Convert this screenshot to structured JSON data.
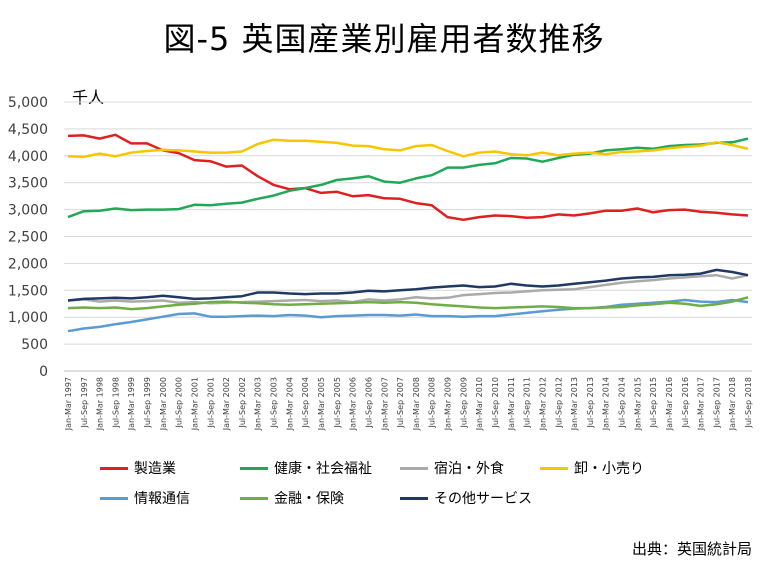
{
  "title": "図-5 英国産業別雇用者数推移",
  "unit_label": "千人",
  "source": "出典：英国統計局",
  "chart_data": {
    "type": "line",
    "title": "図-5 英国産業別雇用者数推移",
    "ylabel": "千人",
    "ylim": [
      0,
      5000
    ],
    "yticks": [
      0,
      500,
      1000,
      1500,
      2000,
      2500,
      3000,
      3500,
      4000,
      4500,
      5000
    ],
    "ytick_labels": [
      "0",
      "500",
      "1,000",
      "1,500",
      "2,000",
      "2,500",
      "3,000",
      "3,500",
      "4,000",
      "4,500",
      "5,000"
    ],
    "x_labels": [
      "Jan-Mar 1997",
      "Jul-Sep 1997",
      "Jan-Mar 1998",
      "Jul-Sep 1998",
      "Jan-Mar 1999",
      "Jul-Sep 1999",
      "Jan-Mar 2000",
      "Jul-Sep 2000",
      "Jan-Mar 2001",
      "Jul-Sep 2001",
      "Jan-Mar 2002",
      "Jul-Sep 2002",
      "Jan-Mar 2003",
      "Jul-Sep 2003",
      "Jan-Mar 2004",
      "Jul-Sep 2004",
      "Jan-Mar 2005",
      "Jul-Sep 2005",
      "Jan-Mar 2006",
      "Jul-Sep 2006",
      "Jan-Mar 2007",
      "Jul-Sep 2007",
      "Jan-Mar 2008",
      "Jul-Sep 2008",
      "Jan-Mar 2009",
      "Jul-Sep 2009",
      "Jan-Mar 2010",
      "Jul-Sep 2010",
      "Jan-Mar 2011",
      "Jul-Sep 2011",
      "Jan-Mar 2012",
      "Jul-Sep 2012",
      "Jan-Mar 2013",
      "Jul-Sep 2013",
      "Jan-Mar 2014",
      "Jul-Sep 2014",
      "Jan-Mar 2015",
      "Jul-Sep 2015",
      "Jan-Mar 2016",
      "Jul-Sep 2016",
      "Jan-Mar 2017",
      "Jul-Sep 2017",
      "Jan-Mar 2018",
      "Jul-Sep 2018"
    ],
    "grid": true,
    "legend_position": "bottom",
    "series": [
      {
        "name": "製造業",
        "color": "#e02020",
        "values": [
          4370,
          4380,
          4320,
          4390,
          4230,
          4230,
          4100,
          4050,
          3920,
          3900,
          3800,
          3820,
          3620,
          3460,
          3380,
          3400,
          3310,
          3330,
          3250,
          3270,
          3210,
          3200,
          3120,
          3080,
          2860,
          2810,
          2860,
          2890,
          2880,
          2850,
          2860,
          2910,
          2890,
          2930,
          2980,
          2980,
          3020,
          2950,
          2990,
          3000,
          2960,
          2940,
          2910,
          2890
        ]
      },
      {
        "name": "健康・社会福祉",
        "color": "#21a857",
        "values": [
          2860,
          2970,
          2980,
          3020,
          2990,
          3000,
          3000,
          3010,
          3090,
          3080,
          3110,
          3130,
          3200,
          3260,
          3350,
          3400,
          3460,
          3550,
          3580,
          3620,
          3520,
          3500,
          3580,
          3640,
          3780,
          3780,
          3830,
          3860,
          3960,
          3950,
          3890,
          3960,
          4020,
          4040,
          4100,
          4120,
          4150,
          4130,
          4180,
          4200,
          4210,
          4240,
          4250,
          4320
        ]
      },
      {
        "name": "宿泊・外食",
        "color": "#aaaaaa",
        "values": [
          1310,
          1330,
          1290,
          1310,
          1290,
          1300,
          1310,
          1270,
          1280,
          1260,
          1270,
          1280,
          1290,
          1300,
          1310,
          1320,
          1300,
          1310,
          1280,
          1330,
          1310,
          1330,
          1370,
          1350,
          1360,
          1410,
          1430,
          1450,
          1460,
          1480,
          1500,
          1510,
          1520,
          1560,
          1600,
          1640,
          1670,
          1690,
          1720,
          1740,
          1760,
          1780,
          1720,
          1780
        ]
      },
      {
        "name": "卸・小売り",
        "color": "#f7c600",
        "values": [
          3990,
          3980,
          4040,
          3990,
          4060,
          4090,
          4110,
          4100,
          4080,
          4060,
          4060,
          4080,
          4220,
          4300,
          4280,
          4280,
          4260,
          4240,
          4190,
          4180,
          4120,
          4100,
          4180,
          4200,
          4090,
          3990,
          4060,
          4080,
          4030,
          4010,
          4060,
          4010,
          4040,
          4060,
          4030,
          4070,
          4080,
          4100,
          4140,
          4170,
          4190,
          4250,
          4200,
          4130
        ]
      },
      {
        "name": "情報通信",
        "color": "#5b9bd5",
        "values": [
          740,
          790,
          820,
          870,
          910,
          960,
          1010,
          1060,
          1070,
          1010,
          1010,
          1020,
          1030,
          1020,
          1040,
          1030,
          1000,
          1020,
          1030,
          1040,
          1040,
          1030,
          1050,
          1020,
          1020,
          1010,
          1020,
          1020,
          1050,
          1080,
          1110,
          1140,
          1160,
          1170,
          1190,
          1230,
          1250,
          1270,
          1290,
          1320,
          1290,
          1280,
          1320,
          1280
        ]
      },
      {
        "name": "金融・保険",
        "color": "#70ad47",
        "values": [
          1170,
          1180,
          1170,
          1180,
          1150,
          1170,
          1200,
          1230,
          1250,
          1280,
          1290,
          1270,
          1260,
          1240,
          1230,
          1240,
          1250,
          1260,
          1270,
          1280,
          1270,
          1280,
          1270,
          1240,
          1220,
          1200,
          1180,
          1170,
          1180,
          1190,
          1200,
          1190,
          1170,
          1170,
          1180,
          1190,
          1220,
          1240,
          1270,
          1250,
          1210,
          1240,
          1290,
          1370
        ]
      },
      {
        "name": "その他サービス",
        "color": "#1f3864",
        "values": [
          1310,
          1340,
          1350,
          1360,
          1350,
          1370,
          1400,
          1370,
          1340,
          1350,
          1370,
          1390,
          1460,
          1460,
          1440,
          1430,
          1440,
          1440,
          1460,
          1490,
          1480,
          1500,
          1520,
          1550,
          1570,
          1590,
          1560,
          1570,
          1620,
          1590,
          1570,
          1590,
          1620,
          1650,
          1680,
          1720,
          1740,
          1750,
          1780,
          1790,
          1810,
          1880,
          1840,
          1780
        ]
      }
    ]
  }
}
